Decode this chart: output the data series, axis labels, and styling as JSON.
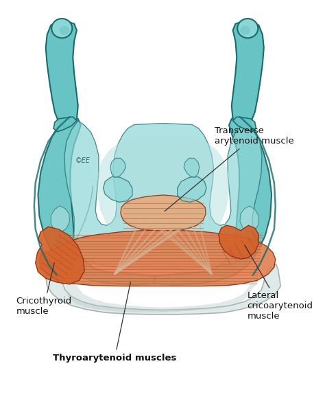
{
  "background_color": "#ffffff",
  "teal_main": "#68c4c4",
  "teal_light": "#8dd6d6",
  "teal_lighter": "#b0e0e0",
  "teal_dark": "#2a8a8a",
  "teal_outline": "#1a6a6a",
  "teal_inner": "#a0d8d8",
  "muscle_orange": "#d4622a",
  "muscle_mid": "#e08050",
  "muscle_light": "#e8a878",
  "muscle_pale": "#d4b898",
  "muscle_stria": "#b84820",
  "cartilage_white": "#dce8e8",
  "cartilage_gray": "#b8c8c8",
  "shadow_teal": "#4a9a9a",
  "labels": {
    "transverse": "Transverse\narytenoid muscle",
    "cricothyroid": "Cricothyroid\nmuscle",
    "thyroarytenoid": "Thyroarytenoid muscles",
    "lateral": "Lateral\ncricoarytenoid\nmuscle"
  },
  "copyright": "©EE",
  "figsize": [
    4.74,
    6.0
  ],
  "dpi": 100
}
